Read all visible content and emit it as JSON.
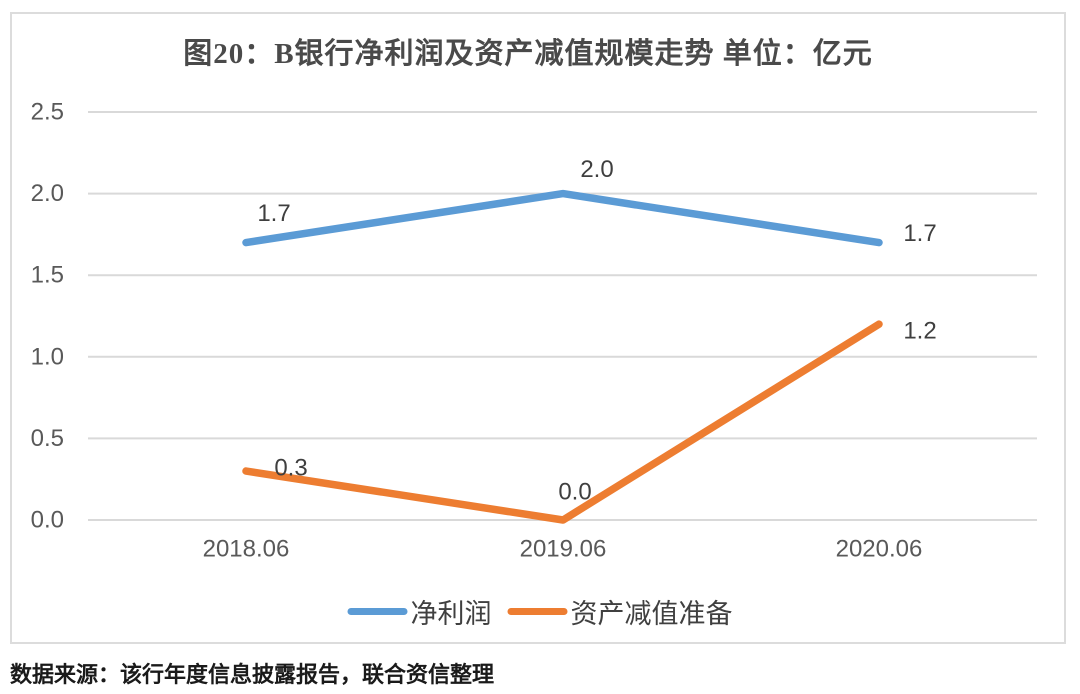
{
  "chart_data": {
    "type": "line",
    "title": "图20：B银行净利润及资产减值规模走势 单位：亿元",
    "unit": "亿元",
    "categories": [
      "2018.06",
      "2019.06",
      "2020.06"
    ],
    "series": [
      {
        "name": "净利润",
        "values": [
          1.7,
          2.0,
          1.7
        ],
        "point_labels": [
          "1.7",
          "2.0",
          "1.7"
        ],
        "color": "#5B9BD5"
      },
      {
        "name": "资产减值准备",
        "values": [
          0.3,
          0.0,
          1.2
        ],
        "point_labels": [
          "0.3",
          "0.0",
          "1.2"
        ],
        "color": "#ED7D31"
      }
    ],
    "y_axis": {
      "tick_values": [
        0,
        0.5,
        1.0,
        1.5,
        2.0,
        2.5
      ],
      "tick_labels": [
        "0.0",
        "0.5",
        "1.0",
        "1.5",
        "2.0",
        "2.5"
      ],
      "range": [
        0,
        2.5
      ]
    },
    "grid": "horizontal",
    "legend_position": "bottom"
  },
  "colors": {
    "series_blue": "#5B9BD5",
    "series_orange": "#ED7D31",
    "gridline": "#d9d9d9",
    "border": "#dcdcdc",
    "tick_text": "#595959",
    "data_label_text": "#3f3f3f",
    "title_text": "#4a4a4a",
    "source_text": "#1a1a1a"
  },
  "source_note": "数据来源：该行年度信息披露报告，联合资信整理"
}
